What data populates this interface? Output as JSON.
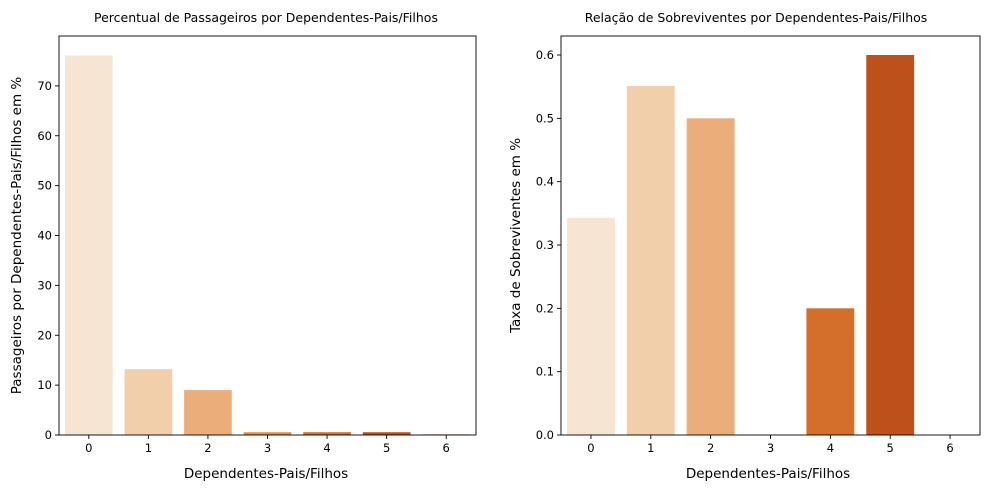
{
  "chart_data": [
    {
      "type": "bar",
      "title": "Percentual de Passageiros por Dependentes-Pais/Filhos",
      "xlabel": "Dependentes-Pais/Filhos",
      "ylabel": "Passageiros por Dependentes-Pais/Filhos em %",
      "categories": [
        "0",
        "1",
        "2",
        "3",
        "4",
        "5",
        "6"
      ],
      "values": [
        76.1,
        13.2,
        9.0,
        0.56,
        0.56,
        0.56,
        0.11
      ],
      "ylim": [
        0,
        80
      ],
      "yticks": [
        0,
        10,
        20,
        30,
        40,
        50,
        60,
        70
      ],
      "ytick_labels": [
        "0",
        "10",
        "20",
        "30",
        "40",
        "50",
        "60",
        "70"
      ],
      "colors": [
        "#f6e5d2",
        "#f1cfab",
        "#ebae7b",
        "#e38d4e",
        "#d36e2b",
        "#bd511b",
        "#9e3a0f"
      ],
      "grid": false,
      "legend": false
    },
    {
      "type": "bar",
      "title": "Relação de Sobreviventes por Dependentes-Pais/Filhos",
      "xlabel": "Dependentes-Pais/Filhos",
      "ylabel": "Taxa de Sobreviventes em %",
      "categories": [
        "0",
        "1",
        "2",
        "3",
        "4",
        "5",
        "6"
      ],
      "values": [
        0.343,
        0.551,
        0.5,
        0.0,
        0.2,
        0.6,
        0.0
      ],
      "ylim": [
        0,
        0.63
      ],
      "yticks": [
        0,
        0.1,
        0.2,
        0.3,
        0.4,
        0.5,
        0.6
      ],
      "ytick_labels": [
        "0.0",
        "0.1",
        "0.2",
        "0.3",
        "0.4",
        "0.5",
        "0.6"
      ],
      "colors": [
        "#f6e5d2",
        "#f1cfab",
        "#ebae7b",
        "#e38d4e",
        "#d36e2b",
        "#bd511b",
        "#9e3a0f"
      ],
      "grid": false,
      "legend": false
    }
  ]
}
